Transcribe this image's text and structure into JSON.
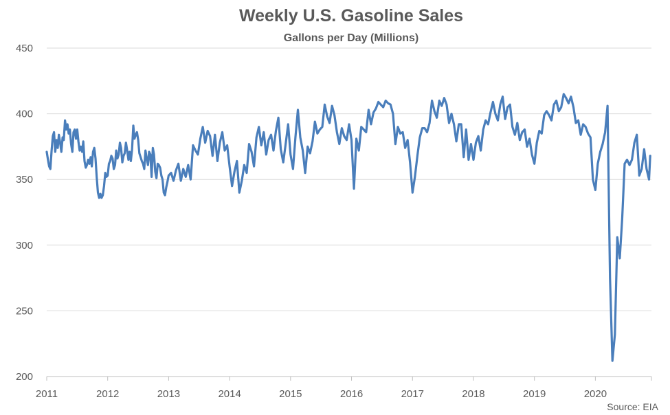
{
  "chart_data": {
    "type": "line",
    "title": "Weekly U.S. Gasoline Sales",
    "subtitle": "Gallons per Day (Millions)",
    "source": "Source: EIA",
    "xlabel": "",
    "ylabel": "",
    "xlim": [
      2011.0,
      2020.92
    ],
    "ylim": [
      200,
      450
    ],
    "x_ticks": [
      "2011",
      "2012",
      "2013",
      "2014",
      "2015",
      "2016",
      "2017",
      "2018",
      "2019",
      "2020"
    ],
    "y_ticks": [
      "450",
      "400",
      "350",
      "300",
      "250",
      "200"
    ],
    "grid": true,
    "legend": "none",
    "color": "#4a7ebb",
    "series": [
      {
        "x": [
          2011.0,
          2011.02,
          2011.04,
          2011.06,
          2011.08,
          2011.1,
          2011.12,
          2011.14,
          2011.16,
          2011.18,
          2011.2,
          2011.22,
          2011.24,
          2011.26,
          2011.28,
          2011.3,
          2011.32,
          2011.34,
          2011.36,
          2011.38,
          2011.4,
          2011.42,
          2011.44,
          2011.46,
          2011.48,
          2011.5,
          2011.52,
          2011.54,
          2011.56,
          2011.58,
          2011.6,
          2011.62,
          2011.64,
          2011.66,
          2011.68,
          2011.7,
          2011.72,
          2011.74,
          2011.76,
          2011.78,
          2011.8,
          2011.82,
          2011.84,
          2011.86,
          2011.88,
          2011.9,
          2011.92,
          2011.94,
          2011.96,
          2011.98,
          2012.0,
          2012.02,
          2012.04,
          2012.06,
          2012.08,
          2012.1,
          2012.12,
          2012.14,
          2012.16,
          2012.18,
          2012.2,
          2012.22,
          2012.24,
          2012.26,
          2012.28,
          2012.3,
          2012.32,
          2012.34,
          2012.36,
          2012.38,
          2012.4,
          2012.42,
          2012.44,
          2012.46,
          2012.48,
          2012.5,
          2012.52,
          2012.54,
          2012.56,
          2012.58,
          2012.6,
          2012.62,
          2012.64,
          2012.66,
          2012.68,
          2012.7,
          2012.72,
          2012.74,
          2012.76,
          2012.78,
          2012.8,
          2012.82,
          2012.84,
          2012.86,
          2012.88,
          2012.9,
          2012.92,
          2012.94,
          2012.96,
          2012.98,
          2013.0,
          2013.04,
          2013.08,
          2013.12,
          2013.16,
          2013.2,
          2013.24,
          2013.28,
          2013.32,
          2013.36,
          2013.4,
          2013.44,
          2013.48,
          2013.52,
          2013.56,
          2013.6,
          2013.64,
          2013.68,
          2013.72,
          2013.76,
          2013.8,
          2013.84,
          2013.88,
          2013.92,
          2013.96,
          2014.0,
          2014.04,
          2014.08,
          2014.12,
          2014.16,
          2014.2,
          2014.24,
          2014.28,
          2014.32,
          2014.36,
          2014.4,
          2014.44,
          2014.48,
          2014.52,
          2014.56,
          2014.6,
          2014.64,
          2014.68,
          2014.72,
          2014.76,
          2014.8,
          2014.84,
          2014.88,
          2014.92,
          2014.96,
          2015.0,
          2015.04,
          2015.08,
          2015.12,
          2015.16,
          2015.2,
          2015.24,
          2015.28,
          2015.32,
          2015.36,
          2015.4,
          2015.44,
          2015.48,
          2015.52,
          2015.56,
          2015.6,
          2015.64,
          2015.68,
          2015.72,
          2015.76,
          2015.8,
          2015.84,
          2015.88,
          2015.92,
          2015.96,
          2016.0,
          2016.04,
          2016.08,
          2016.12,
          2016.16,
          2016.2,
          2016.24,
          2016.28,
          2016.32,
          2016.36,
          2016.4,
          2016.44,
          2016.48,
          2016.52,
          2016.56,
          2016.6,
          2016.64,
          2016.68,
          2016.72,
          2016.76,
          2016.8,
          2016.84,
          2016.88,
          2016.92,
          2016.96,
          2017.0,
          2017.04,
          2017.08,
          2017.12,
          2017.16,
          2017.2,
          2017.24,
          2017.28,
          2017.32,
          2017.36,
          2017.4,
          2017.44,
          2017.48,
          2017.52,
          2017.56,
          2017.6,
          2017.64,
          2017.68,
          2017.72,
          2017.76,
          2017.8,
          2017.84,
          2017.88,
          2017.92,
          2017.96,
          2018.0,
          2018.04,
          2018.08,
          2018.12,
          2018.16,
          2018.2,
          2018.24,
          2018.28,
          2018.32,
          2018.36,
          2018.4,
          2018.44,
          2018.48,
          2018.52,
          2018.56,
          2018.6,
          2018.64,
          2018.68,
          2018.72,
          2018.76,
          2018.8,
          2018.84,
          2018.88,
          2018.92,
          2018.96,
          2019.0,
          2019.04,
          2019.08,
          2019.12,
          2019.16,
          2019.2,
          2019.24,
          2019.28,
          2019.32,
          2019.36,
          2019.4,
          2019.44,
          2019.48,
          2019.52,
          2019.56,
          2019.6,
          2019.64,
          2019.68,
          2019.72,
          2019.76,
          2019.8,
          2019.84,
          2019.88,
          2019.92,
          2019.96,
          2020.0,
          2020.04,
          2020.08,
          2020.12,
          2020.16,
          2020.2,
          2020.24,
          2020.28,
          2020.32,
          2020.36,
          2020.4,
          2020.44,
          2020.48,
          2020.52,
          2020.56,
          2020.6,
          2020.64,
          2020.68,
          2020.72,
          2020.76,
          2020.8,
          2020.84,
          2020.88,
          2020.9
        ],
        "y": [
          371,
          365,
          360,
          358,
          372,
          383,
          386,
          371,
          380,
          374,
          384,
          378,
          371,
          382,
          380,
          395,
          388,
          392,
          385,
          388,
          377,
          371,
          386,
          388,
          381,
          388,
          379,
          372,
          375,
          371,
          379,
          364,
          359,
          361,
          365,
          362,
          367,
          360,
          371,
          374,
          366,
          352,
          340,
          336,
          339,
          336,
          338,
          345,
          355,
          352,
          353,
          362,
          364,
          368,
          366,
          358,
          361,
          372,
          366,
          369,
          378,
          374,
          363,
          368,
          370,
          378,
          372,
          365,
          371,
          364,
          373,
          391,
          381,
          384,
          386,
          380,
          370,
          367,
          364,
          362,
          358,
          372,
          366,
          361,
          371,
          369,
          352,
          374,
          369,
          356,
          351,
          362,
          361,
          359,
          353,
          350,
          340,
          338,
          344,
          348,
          353,
          355,
          349,
          357,
          362,
          349,
          358,
          352,
          361,
          350,
          376,
          372,
          369,
          381,
          390,
          378,
          387,
          383,
          368,
          384,
          364,
          378,
          386,
          372,
          376,
          360,
          345,
          356,
          364,
          340,
          349,
          361,
          355,
          377,
          371,
          360,
          382,
          390,
          376,
          386,
          369,
          380,
          384,
          372,
          387,
          397,
          373,
          363,
          377,
          392,
          369,
          358,
          382,
          403,
          382,
          372,
          355,
          375,
          370,
          379,
          394,
          385,
          388,
          390,
          407,
          398,
          393,
          406,
          399,
          386,
          377,
          389,
          383,
          380,
          392,
          380,
          343,
          381,
          372,
          390,
          388,
          386,
          403,
          392,
          401,
          404,
          409,
          407,
          405,
          410,
          408,
          407,
          400,
          377,
          390,
          385,
          386,
          374,
          380,
          363,
          340,
          352,
          368,
          382,
          389,
          389,
          386,
          393,
          410,
          402,
          397,
          410,
          406,
          412,
          407,
          393,
          400,
          392,
          379,
          392,
          392,
          367,
          388,
          365,
          377,
          365,
          378,
          383,
          372,
          388,
          395,
          392,
          401,
          409,
          400,
          395,
          407,
          413,
          396,
          405,
          407,
          390,
          384,
          393,
          380,
          386,
          388,
          375,
          381,
          369,
          362,
          378,
          387,
          385,
          399,
          402,
          399,
          395,
          407,
          410,
          402,
          405,
          415,
          412,
          408,
          413,
          405,
          393,
          395,
          384,
          392,
          390,
          385,
          382,
          350,
          342,
          362,
          371,
          377,
          386,
          406,
          275,
          212,
          232,
          306,
          290,
          320,
          362,
          365,
          361,
          365,
          378,
          384,
          353,
          358,
          373,
          358,
          350,
          368
        ]
      }
    ]
  }
}
